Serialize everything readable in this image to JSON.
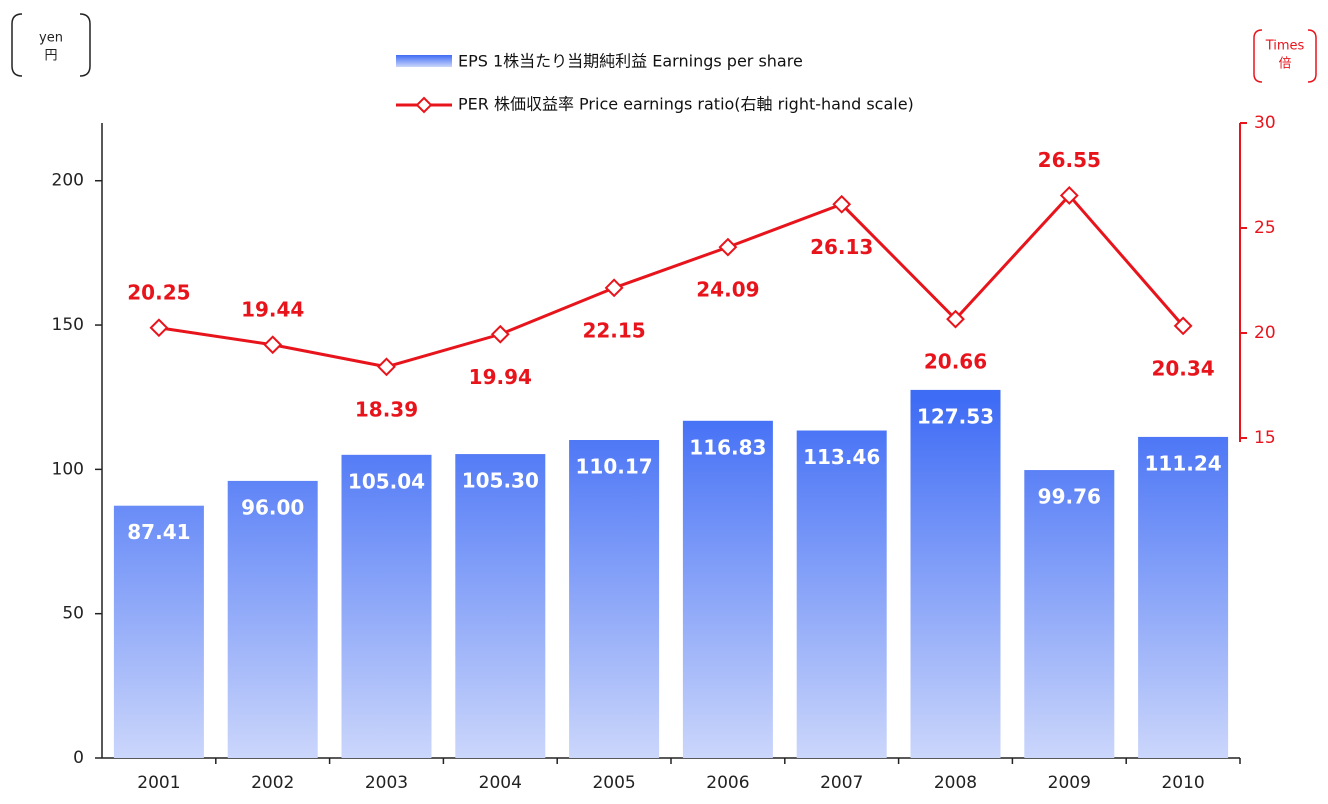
{
  "chart_data": {
    "type": "bar",
    "left_unit": [
      "yen",
      "円"
    ],
    "right_unit": [
      "Times",
      "倍"
    ],
    "categories": [
      "2001",
      "2002",
      "2003",
      "2004",
      "2005",
      "2006",
      "2007",
      "2008",
      "2009",
      "2010"
    ],
    "series": [
      {
        "name": "EPS 1株当たり当期純利益 Earnings per share",
        "type": "bar",
        "color": "#3f6cf5",
        "values": [
          87.41,
          96.0,
          105.04,
          105.3,
          110.17,
          116.83,
          113.46,
          127.53,
          99.76,
          111.24
        ],
        "value_labels": [
          "87.41",
          "96.00",
          "105.04",
          "105.30",
          "110.17",
          "116.83",
          "113.46",
          "127.53",
          "99.76",
          "111.24"
        ]
      },
      {
        "name": "PER 株価収益率 Price earnings ratio(右軸 right-hand scale)",
        "type": "line",
        "axis": "y2",
        "color": "#e8141c",
        "values": [
          20.25,
          19.44,
          18.39,
          19.94,
          22.15,
          24.09,
          26.13,
          20.66,
          26.55,
          20.34
        ],
        "value_labels": [
          "20.25",
          "19.44",
          "18.39",
          "19.94",
          "22.15",
          "24.09",
          "26.13",
          "20.66",
          "26.55",
          "20.34"
        ]
      }
    ],
    "ylim": [
      0,
      220
    ],
    "yticks": [
      0,
      50,
      100,
      150,
      200
    ],
    "y2lim": [
      15,
      30
    ],
    "y2ticks": [
      15,
      20,
      25,
      30
    ]
  }
}
